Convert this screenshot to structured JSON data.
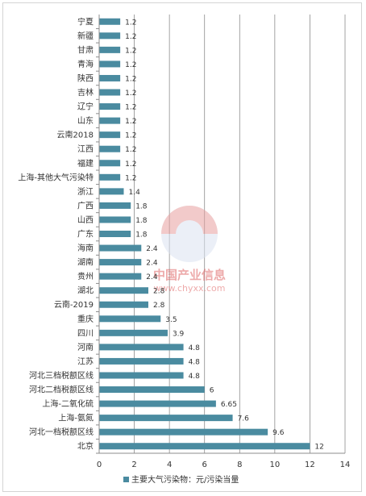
{
  "chart_data": {
    "type": "bar",
    "orientation": "horizontal",
    "categories": [
      "宁夏",
      "新疆",
      "甘肃",
      "青海",
      "陕西",
      "吉林",
      "辽宁",
      "山东",
      "云南2018",
      "江西",
      "福建",
      "上海-其他大气污染特",
      "浙江",
      "广西",
      "山西",
      "广东",
      "海南",
      "湖南",
      "贵州",
      "湖北",
      "云南-2019",
      "重庆",
      "四川",
      "河南",
      "江苏",
      "河北三档税额区线",
      "河北二档税额区线",
      "上海-二氧化硫",
      "上海-氨氮",
      "河北一档税额区线",
      "北京"
    ],
    "series": [
      {
        "name": "主要大气污染物：元/污染当量",
        "values": [
          1.2,
          1.2,
          1.2,
          1.2,
          1.2,
          1.2,
          1.2,
          1.2,
          1.2,
          1.2,
          1.2,
          1.2,
          1.4,
          1.8,
          1.8,
          1.8,
          2.4,
          2.4,
          2.4,
          2.8,
          2.8,
          3.5,
          3.9,
          4.8,
          4.8,
          4.8,
          6,
          6.65,
          7.6,
          9.6,
          12
        ],
        "value_labels": [
          "1.2",
          "1.2",
          "1.2",
          "1.2",
          "1.2",
          "1.2",
          "1.2",
          "1.2",
          "1.2",
          "1.2",
          "1.2",
          "1.2",
          "1.4",
          "1.8",
          "1.8",
          "1.8",
          "2.4",
          "2.4",
          "2.4",
          "2.8",
          "2.8",
          "3.5",
          "3.9",
          "4.8",
          "4.8",
          "4.8",
          "6",
          "6.65",
          "7.6",
          "9.6",
          "12"
        ]
      }
    ],
    "xlim": [
      0,
      14
    ],
    "xticks": [
      "0",
      "2",
      "4",
      "6",
      "8",
      "10",
      "12",
      "14"
    ],
    "grid": "vertical",
    "legend_position": "bottom",
    "bar_color": "#4a8ba0"
  },
  "watermark": {
    "name": "中国产业信息",
    "url": "www.chyxx.com"
  }
}
